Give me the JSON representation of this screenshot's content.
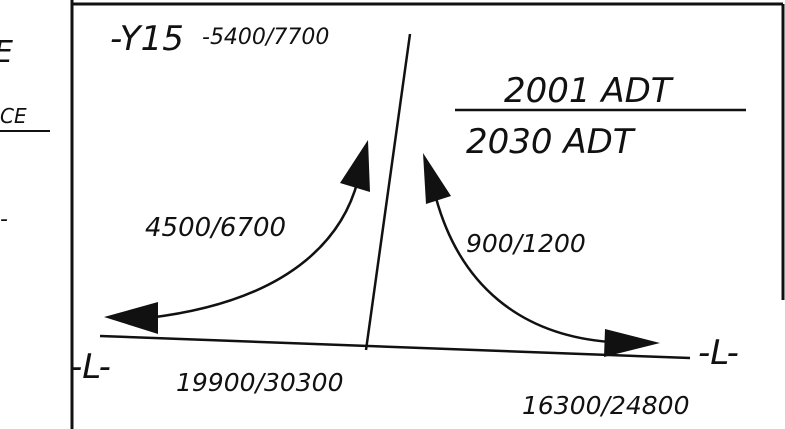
{
  "left_margin_fragments": {
    "glyph_top": "E",
    "underlined_text": "CE",
    "dash": "-"
  },
  "legend": {
    "numerator": "2001 ADT",
    "denominator": "2030 ADT"
  },
  "roads": {
    "cross_road": {
      "label": "-Y15",
      "volume": "-5400/7700"
    },
    "mainline_left": {
      "label": "-L-",
      "volume": "19900/30300"
    },
    "mainline_right": {
      "label": "-L-",
      "volume": "16300/24800"
    }
  },
  "turning_movements": {
    "left_turn": {
      "volume": "4500/6700"
    },
    "right_turn": {
      "volume": "900/1200"
    }
  },
  "colors": {
    "ink": "#111111",
    "paper": "#ffffff"
  }
}
